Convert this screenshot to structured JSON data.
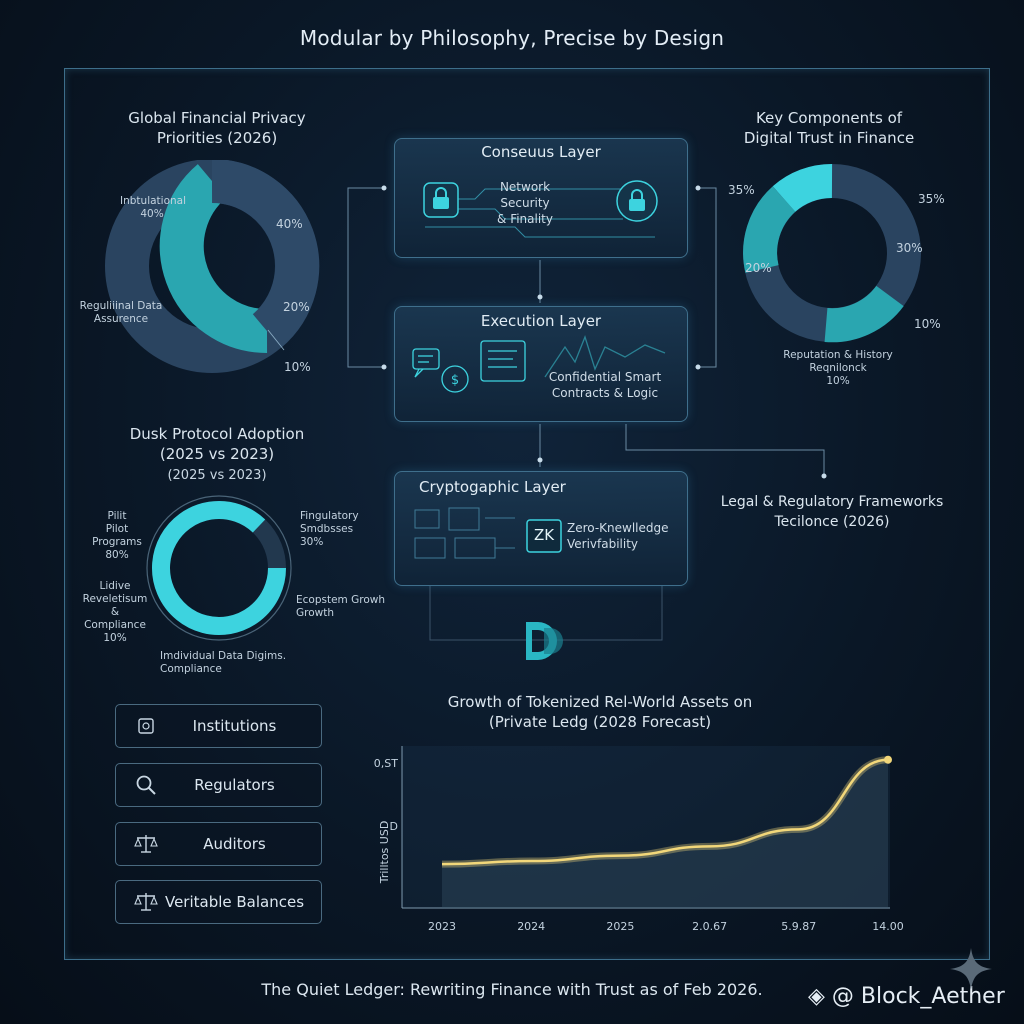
{
  "title": "Modular by Philosophy, Precise by Design",
  "footer": "The Quiet Ledger: Rewriting Finance with Trust as of Feb 2026.",
  "handle": "@ Block_Aether",
  "colors": {
    "teal": "#2aa6b0",
    "cyan": "#3dd3df",
    "navy": "#2a4460",
    "gold": "#f2d77a"
  },
  "privacy_chart": {
    "title_line1": "Global Financial Privacy",
    "title_line2": "Priorities (2026)",
    "label_institutional": "Inbtulational",
    "label_institutional_pct": "40%",
    "label_regulatory_1": "Reguliiinal Data",
    "label_regulatory_2": "Assurence",
    "pct_40": "40%",
    "pct_20": "20%",
    "pct_10": "10%"
  },
  "trust_chart": {
    "title_line1": "Key Components of",
    "title_line2": "Digital Trust in Finance",
    "pct_left": "35%",
    "pct_right": "35%",
    "pct_30": "30%",
    "pct_20": "20%",
    "pct_10": "10%",
    "bottom_1": "Reputation & History",
    "bottom_2": "Reqnilonck",
    "bottom_3": "10%"
  },
  "adoption_chart": {
    "title_line1": "Dusk Protocol Adoption",
    "title_line2": "(2025 vs 2023)",
    "subtitle": "(2025 vs 2023)",
    "pilot_1": "Pilit",
    "pilot_2": "Pilot Programs",
    "pilot_3": "80%",
    "sandbox_1": "Fingulatory",
    "sandbox_2": "Smdbsses",
    "sandbox_3": "30%",
    "live_1": "Lidive",
    "live_2": "Reveletisum",
    "live_3": "& Compliance",
    "live_4": "10%",
    "eco_1": "Ecopstem Growh",
    "eco_2": "Growth",
    "bottom_1": "Imdividual Data Digims.",
    "bottom_2": "Compliance"
  },
  "layers": {
    "consensus_title": "Conseuus Layer",
    "consensus_sub_1": "Network Security",
    "consensus_sub_2": "& Finality",
    "execution_title": "Execution Layer",
    "execution_sub_1": "Confidential Smart",
    "execution_sub_2": "Contracts & Logic",
    "crypto_title": "Cryptogaphic Layer",
    "crypto_badge": "ZK",
    "crypto_sub_1": "Zero-Knewlledge",
    "crypto_sub_2": "Verivfability"
  },
  "legal": {
    "line1": "Legal & Regulatory Frameworks",
    "line2": "Tecilonce (2026)"
  },
  "stakeholders": [
    {
      "label": "Institutions",
      "icon": "vault-icon"
    },
    {
      "label": "Regulators",
      "icon": "search-icon"
    },
    {
      "label": "Auditors",
      "icon": "scale-icon"
    },
    {
      "label": "Veritable Balances",
      "icon": "scale-icon"
    }
  ],
  "chart_data": {
    "type": "line",
    "title": "Growth of Tokenized Rel-World Assets on",
    "subtitle": "(Private Ledg (2028 Forecast)",
    "ylabel": "Trilltos USD",
    "yticks": [
      "0,ST",
      "D",
      ""
    ],
    "categories": [
      "2023",
      "2024",
      "2025",
      "2.0.67",
      "5.9.87",
      "14.00"
    ],
    "values": [
      0.5,
      0.9,
      1.6,
      2.8,
      5.0,
      14.0
    ],
    "ylim": [
      0,
      15
    ],
    "grid": false,
    "color": "#f2d77a"
  }
}
